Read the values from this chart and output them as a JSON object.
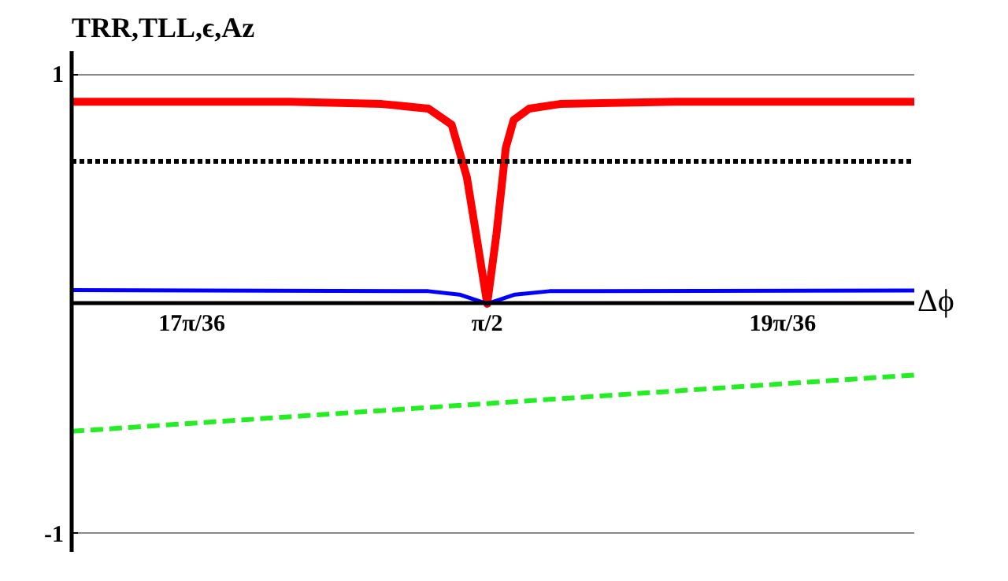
{
  "chart_data": {
    "type": "line",
    "xlabel": "Δϕ",
    "ylabel": "TRR,TLL,ϵ,Az",
    "xlim": [
      1.448,
      1.697
    ],
    "ylim": [
      -1.08,
      1.1
    ],
    "xticks": [
      {
        "value": 1.4835,
        "label": "17π/36"
      },
      {
        "value": 1.5708,
        "label": "π/2"
      },
      {
        "value": 1.6581,
        "label": "19π/36"
      }
    ],
    "yticks": [
      1,
      -1
    ],
    "grid": "y",
    "series": [
      {
        "color": "#ff0000",
        "line_style": "solid",
        "x": [
          1.448,
          1.5122,
          1.5397,
          1.5534,
          1.5603,
          1.5648,
          1.5681,
          1.5708,
          1.5735,
          1.5763,
          1.5786,
          1.5832,
          1.5923,
          1.6267,
          1.697
        ],
        "values": [
          0.88,
          0.88,
          0.87,
          0.85,
          0.78,
          0.55,
          0.25,
          0.0,
          0.3,
          0.68,
          0.8,
          0.85,
          0.87,
          0.88,
          0.88
        ]
      },
      {
        "color": "#000000",
        "line_style": "dotted",
        "x": [
          1.448,
          1.697
        ],
        "values": [
          0.62,
          0.62
        ]
      },
      {
        "color": "#0000ff",
        "line_style": "solid",
        "x": [
          1.448,
          1.5534,
          1.5626,
          1.5708,
          1.579,
          1.5892,
          1.697
        ],
        "values": [
          0.06,
          0.055,
          0.04,
          0.0,
          0.04,
          0.055,
          0.058
        ]
      },
      {
        "color": "#22ee22",
        "line_style": "dashed",
        "x": [
          1.448,
          1.697
        ],
        "values": [
          -0.555,
          -0.31
        ]
      }
    ]
  }
}
